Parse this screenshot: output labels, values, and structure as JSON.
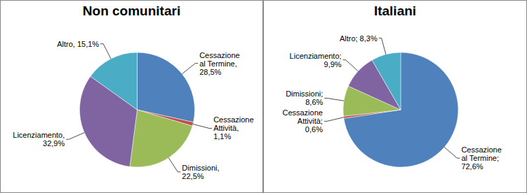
{
  "chart_data": [
    {
      "type": "pie",
      "title": "Non comunitari",
      "categories": [
        "Cessazione al Termine",
        "Cessazione Attività",
        "Dimissioni",
        "Licenziamento",
        "Altro"
      ],
      "values": [
        28.5,
        1.1,
        22.5,
        32.9,
        15.1
      ],
      "value_labels": [
        "Cessazione al Termine, 28,5%",
        "Cessazione Attività, 1,1%",
        "Dimissioni, 22,5%",
        "Licenziamento, 32,9%",
        "Altro, 15,1%"
      ],
      "colors": [
        "#4f81bd",
        "#c0504d",
        "#9bbb59",
        "#8064a2",
        "#4bacc6"
      ],
      "data_labels": true
    },
    {
      "type": "pie",
      "title": "Italiani",
      "categories": [
        "Cessazione al Termine",
        "Cessazione Attività",
        "Dimissioni",
        "Licenziamento",
        "Altro"
      ],
      "values": [
        72.6,
        0.6,
        8.6,
        9.9,
        8.3
      ],
      "value_labels": [
        "Cessazione al Termine; 72,6%",
        "Cessazione Attività; 0,6%",
        "Dimissioni; 8,6%",
        "Licenziamento; 9,9%",
        "Altro; 8,3%"
      ],
      "colors": [
        "#4f81bd",
        "#c0504d",
        "#9bbb59",
        "#8064a2",
        "#4bacc6"
      ],
      "data_labels": true
    }
  ]
}
